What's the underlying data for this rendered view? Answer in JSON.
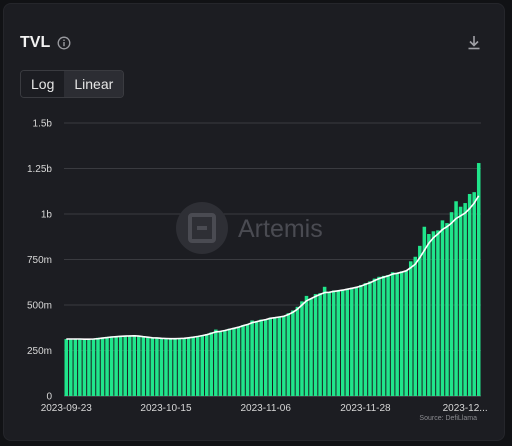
{
  "header": {
    "title": "TVL",
    "toggle_log": "Log",
    "toggle_linear": "Linear"
  },
  "watermark": {
    "text": "Artemis"
  },
  "source": "Source: DefiLlama",
  "colors": {
    "bar": "#20e58b",
    "line": "#ffffff",
    "background": "#1c1d22",
    "grid": "#3a3b40"
  },
  "icons": {
    "info": "info-icon",
    "download": "download-icon"
  },
  "chart_data": {
    "type": "bar",
    "title": "",
    "xlabel": "",
    "ylabel": "",
    "ylim": [
      0,
      1.5
    ],
    "grid": true,
    "y_ticks": [
      {
        "v": 0,
        "label": "0"
      },
      {
        "v": 0.25,
        "label": "250m"
      },
      {
        "v": 0.5,
        "label": "500m"
      },
      {
        "v": 0.75,
        "label": "750m"
      },
      {
        "v": 1.0,
        "label": "1b"
      },
      {
        "v": 1.25,
        "label": "1.25b"
      },
      {
        "v": 1.5,
        "label": "1.5b"
      }
    ],
    "x_ticks": [
      {
        "i": 0,
        "label": "2023-09-23"
      },
      {
        "i": 22,
        "label": "2023-10-15"
      },
      {
        "i": 44,
        "label": "2023-11-06"
      },
      {
        "i": 66,
        "label": "2023-11-28"
      },
      {
        "i": 88,
        "label": "2023-12..."
      }
    ],
    "series": [
      {
        "type": "bar",
        "values": [
          0.313,
          0.31,
          0.313,
          0.31,
          0.31,
          0.308,
          0.315,
          0.32,
          0.322,
          0.325,
          0.328,
          0.328,
          0.33,
          0.33,
          0.332,
          0.335,
          0.33,
          0.325,
          0.322,
          0.32,
          0.32,
          0.318,
          0.316,
          0.315,
          0.315,
          0.315,
          0.318,
          0.322,
          0.325,
          0.33,
          0.335,
          0.34,
          0.35,
          0.365,
          0.355,
          0.36,
          0.37,
          0.375,
          0.38,
          0.39,
          0.395,
          0.415,
          0.41,
          0.42,
          0.42,
          0.43,
          0.43,
          0.435,
          0.44,
          0.455,
          0.47,
          0.49,
          0.52,
          0.55,
          0.535,
          0.56,
          0.565,
          0.6,
          0.57,
          0.58,
          0.58,
          0.585,
          0.59,
          0.595,
          0.6,
          0.61,
          0.62,
          0.63,
          0.645,
          0.655,
          0.66,
          0.665,
          0.68,
          0.675,
          0.685,
          0.69,
          0.74,
          0.765,
          0.825,
          0.93,
          0.89,
          0.905,
          0.91,
          0.965,
          0.95,
          1.01,
          1.07,
          1.04,
          1.06,
          1.11,
          1.12,
          1.28
        ]
      },
      {
        "type": "line",
        "values": [
          0.313,
          0.313,
          0.313,
          0.313,
          0.312,
          0.312,
          0.313,
          0.315,
          0.318,
          0.321,
          0.324,
          0.326,
          0.328,
          0.329,
          0.33,
          0.331,
          0.329,
          0.326,
          0.323,
          0.32,
          0.319,
          0.317,
          0.316,
          0.315,
          0.315,
          0.316,
          0.317,
          0.32,
          0.323,
          0.327,
          0.332,
          0.337,
          0.344,
          0.352,
          0.355,
          0.36,
          0.366,
          0.372,
          0.378,
          0.386,
          0.393,
          0.403,
          0.408,
          0.415,
          0.42,
          0.427,
          0.43,
          0.434,
          0.438,
          0.448,
          0.46,
          0.477,
          0.5,
          0.523,
          0.535,
          0.547,
          0.558,
          0.568,
          0.57,
          0.575,
          0.578,
          0.582,
          0.587,
          0.592,
          0.597,
          0.604,
          0.613,
          0.622,
          0.634,
          0.645,
          0.653,
          0.66,
          0.67,
          0.674,
          0.68,
          0.688,
          0.705,
          0.725,
          0.76,
          0.8,
          0.84,
          0.87,
          0.89,
          0.915,
          0.93,
          0.95,
          0.975,
          0.99,
          1.005,
          1.03,
          1.06,
          1.1
        ]
      }
    ]
  }
}
